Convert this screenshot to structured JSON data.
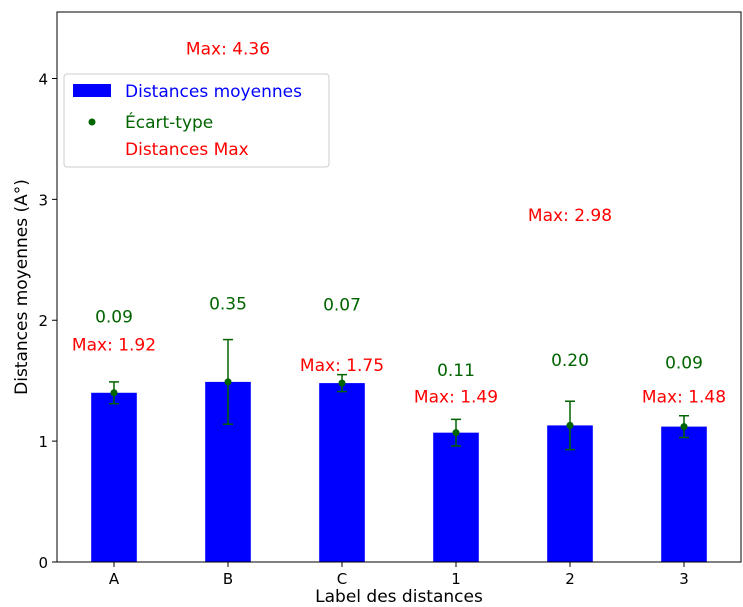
{
  "chart_data": {
    "type": "bar",
    "title": "",
    "xlabel": "Label des distances",
    "ylabel": "Distances moyennes (A°)",
    "categories": [
      "A",
      "B",
      "C",
      "1",
      "2",
      "3"
    ],
    "ylim": [
      0,
      4.55
    ],
    "yticks": [
      0,
      1,
      2,
      3,
      4
    ],
    "ytick_labels": [
      "0",
      "1",
      "2",
      "3",
      "4"
    ],
    "grid": false,
    "legend_position": "upper-left",
    "series": [
      {
        "name": "Distances moyennes",
        "kind": "bar",
        "color": "#0000ff",
        "values": [
          1.4,
          1.49,
          1.48,
          1.07,
          1.13,
          1.12
        ]
      },
      {
        "name": "Écart-type",
        "kind": "errorbar",
        "color": "#006400",
        "values": [
          1.4,
          1.49,
          1.48,
          1.07,
          1.13,
          1.12
        ],
        "errors": [
          0.09,
          0.35,
          0.07,
          0.11,
          0.2,
          0.09
        ],
        "labels": [
          "0.09",
          "0.35",
          "0.07",
          "0.11",
          "0.20",
          "0.09"
        ],
        "label_y": [
          1.98,
          2.09,
          2.08,
          1.54,
          1.62,
          1.6
        ]
      },
      {
        "name": "Distances Max",
        "kind": "text",
        "color": "#ff0000",
        "values": [
          1.92,
          4.36,
          1.75,
          1.49,
          2.98,
          1.48
        ],
        "labels": [
          "Max: 1.92",
          "Max: 4.36",
          "Max: 1.75",
          "Max: 1.49",
          "Max: 2.98",
          "Max: 1.48"
        ],
        "label_y": [
          1.75,
          4.2,
          1.58,
          1.32,
          2.82,
          1.32
        ]
      }
    ]
  }
}
